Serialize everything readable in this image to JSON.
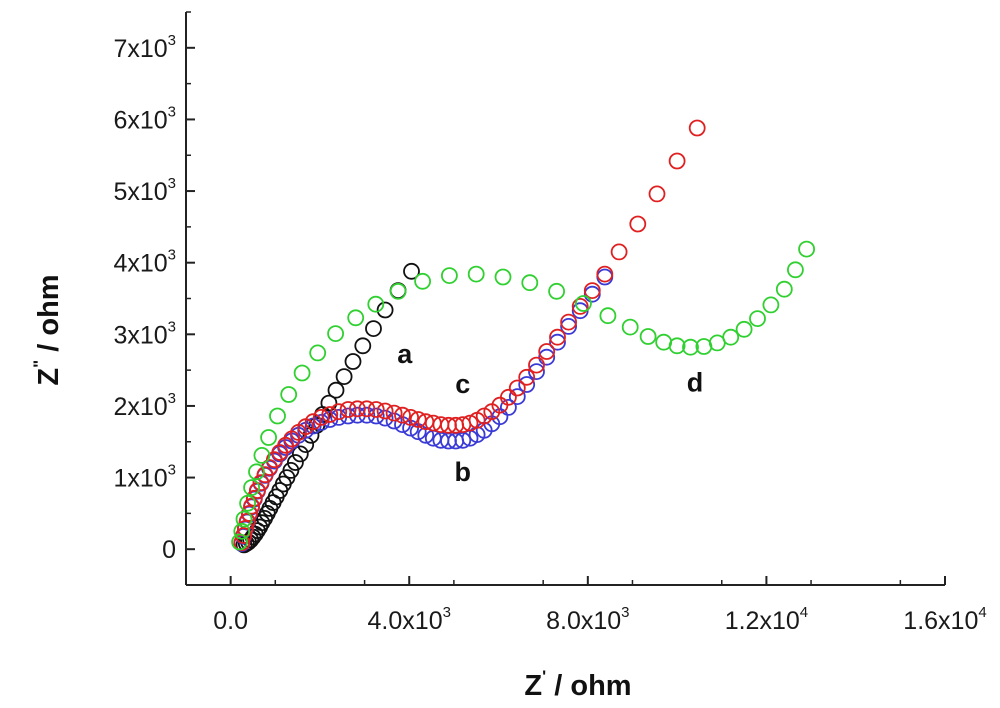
{
  "chart_data": {
    "type": "scatter",
    "title": "",
    "xlabel": "Z",
    "xlabel_sup": "'",
    "xlabel_unit": " / ohm",
    "ylabel": "Z",
    "ylabel_sup": "\"",
    "ylabel_unit": " / ohm",
    "xlim": [
      -1000,
      16000
    ],
    "ylim": [
      -500,
      7500
    ],
    "x_ticks": [
      {
        "value": 0,
        "label": "0.0",
        "sup": ""
      },
      {
        "value": 4000,
        "label": "4.0x10",
        "sup": "3"
      },
      {
        "value": 8000,
        "label": "8.0x10",
        "sup": "3"
      },
      {
        "value": 12000,
        "label": "1.2x10",
        "sup": "4"
      },
      {
        "value": 16000,
        "label": "1.6x10",
        "sup": "4"
      }
    ],
    "y_ticks": [
      {
        "value": 0,
        "label": "0",
        "sup": ""
      },
      {
        "value": 1000,
        "label": "1x10",
        "sup": "3"
      },
      {
        "value": 2000,
        "label": "2x10",
        "sup": "3"
      },
      {
        "value": 3000,
        "label": "3x10",
        "sup": "3"
      },
      {
        "value": 4000,
        "label": "4x10",
        "sup": "3"
      },
      {
        "value": 5000,
        "label": "5x10",
        "sup": "3"
      },
      {
        "value": 6000,
        "label": "6x10",
        "sup": "3"
      },
      {
        "value": 7000,
        "label": "7x10",
        "sup": "3"
      }
    ],
    "grid": false,
    "legend": "none",
    "series": [
      {
        "name": "a",
        "color": "#111111",
        "label_at": [
          3900,
          2600
        ],
        "points": [
          [
            300,
            60
          ],
          [
            350,
            80
          ],
          [
            400,
            100
          ],
          [
            450,
            130
          ],
          [
            500,
            170
          ],
          [
            550,
            210
          ],
          [
            600,
            260
          ],
          [
            650,
            310
          ],
          [
            700,
            370
          ],
          [
            760,
            430
          ],
          [
            820,
            500
          ],
          [
            880,
            570
          ],
          [
            950,
            650
          ],
          [
            1020,
            730
          ],
          [
            1100,
            820
          ],
          [
            1180,
            910
          ],
          [
            1260,
            1000
          ],
          [
            1350,
            1100
          ],
          [
            1450,
            1210
          ],
          [
            1560,
            1330
          ],
          [
            1680,
            1460
          ],
          [
            1800,
            1590
          ],
          [
            1930,
            1730
          ],
          [
            2060,
            1880
          ],
          [
            2200,
            2040
          ],
          [
            2360,
            2220
          ],
          [
            2540,
            2410
          ],
          [
            2740,
            2620
          ],
          [
            2960,
            2840
          ],
          [
            3200,
            3080
          ],
          [
            3460,
            3340
          ],
          [
            3750,
            3610
          ],
          [
            4050,
            3880
          ]
        ]
      },
      {
        "name": "b",
        "color": "#3a3ad6",
        "label_at": [
          5200,
          950
        ],
        "points": [
          [
            250,
            80
          ],
          [
            290,
            180
          ],
          [
            330,
            280
          ],
          [
            370,
            380
          ],
          [
            420,
            490
          ],
          [
            470,
            590
          ],
          [
            530,
            700
          ],
          [
            600,
            810
          ],
          [
            680,
            920
          ],
          [
            770,
            1030
          ],
          [
            870,
            1130
          ],
          [
            980,
            1230
          ],
          [
            1100,
            1330
          ],
          [
            1230,
            1420
          ],
          [
            1370,
            1510
          ],
          [
            1520,
            1590
          ],
          [
            1680,
            1660
          ],
          [
            1850,
            1720
          ],
          [
            2030,
            1770
          ],
          [
            2220,
            1810
          ],
          [
            2420,
            1840
          ],
          [
            2630,
            1860
          ],
          [
            2840,
            1870
          ],
          [
            3050,
            1870
          ],
          [
            3260,
            1860
          ],
          [
            3460,
            1830
          ],
          [
            3660,
            1790
          ],
          [
            3850,
            1740
          ],
          [
            4030,
            1690
          ],
          [
            4200,
            1640
          ],
          [
            4370,
            1590
          ],
          [
            4540,
            1550
          ],
          [
            4710,
            1520
          ],
          [
            4880,
            1510
          ],
          [
            5040,
            1510
          ],
          [
            5200,
            1520
          ],
          [
            5360,
            1550
          ],
          [
            5520,
            1600
          ],
          [
            5680,
            1660
          ],
          [
            5850,
            1750
          ],
          [
            6030,
            1850
          ],
          [
            6220,
            1980
          ],
          [
            6420,
            2130
          ],
          [
            6630,
            2300
          ],
          [
            6850,
            2480
          ],
          [
            7080,
            2680
          ],
          [
            7320,
            2890
          ],
          [
            7570,
            3110
          ],
          [
            7830,
            3330
          ],
          [
            8100,
            3560
          ],
          [
            8380,
            3800
          ]
        ]
      },
      {
        "name": "c",
        "color": "#e02020",
        "label_at": [
          5200,
          2180
        ],
        "points": [
          [
            250,
            90
          ],
          [
            290,
            190
          ],
          [
            330,
            290
          ],
          [
            370,
            390
          ],
          [
            420,
            500
          ],
          [
            470,
            600
          ],
          [
            530,
            710
          ],
          [
            600,
            820
          ],
          [
            680,
            930
          ],
          [
            770,
            1040
          ],
          [
            870,
            1140
          ],
          [
            980,
            1250
          ],
          [
            1100,
            1350
          ],
          [
            1230,
            1450
          ],
          [
            1370,
            1540
          ],
          [
            1520,
            1630
          ],
          [
            1680,
            1710
          ],
          [
            1850,
            1780
          ],
          [
            2030,
            1840
          ],
          [
            2220,
            1880
          ],
          [
            2420,
            1920
          ],
          [
            2630,
            1950
          ],
          [
            2840,
            1960
          ],
          [
            3050,
            1960
          ],
          [
            3260,
            1950
          ],
          [
            3460,
            1930
          ],
          [
            3660,
            1900
          ],
          [
            3850,
            1870
          ],
          [
            4030,
            1840
          ],
          [
            4200,
            1810
          ],
          [
            4370,
            1780
          ],
          [
            4540,
            1760
          ],
          [
            4710,
            1740
          ],
          [
            4880,
            1730
          ],
          [
            5040,
            1730
          ],
          [
            5200,
            1740
          ],
          [
            5360,
            1760
          ],
          [
            5520,
            1800
          ],
          [
            5680,
            1860
          ],
          [
            5850,
            1920
          ],
          [
            6030,
            2010
          ],
          [
            6220,
            2120
          ],
          [
            6420,
            2250
          ],
          [
            6630,
            2400
          ],
          [
            6850,
            2570
          ],
          [
            7080,
            2760
          ],
          [
            7320,
            2960
          ],
          [
            7570,
            3170
          ],
          [
            7830,
            3390
          ],
          [
            8100,
            3610
          ],
          [
            8380,
            3840
          ],
          [
            8700,
            4150
          ],
          [
            9120,
            4540
          ],
          [
            9550,
            4960
          ],
          [
            10000,
            5420
          ],
          [
            10450,
            5880
          ]
        ]
      },
      {
        "name": "d",
        "color": "#30d030",
        "label_at": [
          10400,
          2200
        ],
        "points": [
          [
            200,
            100
          ],
          [
            250,
            250
          ],
          [
            300,
            420
          ],
          [
            380,
            640
          ],
          [
            470,
            860
          ],
          [
            580,
            1080
          ],
          [
            700,
            1310
          ],
          [
            850,
            1560
          ],
          [
            1050,
            1860
          ],
          [
            1300,
            2160
          ],
          [
            1600,
            2460
          ],
          [
            1950,
            2740
          ],
          [
            2350,
            3010
          ],
          [
            2800,
            3230
          ],
          [
            3250,
            3420
          ],
          [
            3750,
            3600
          ],
          [
            4300,
            3740
          ],
          [
            4900,
            3820
          ],
          [
            5500,
            3840
          ],
          [
            6100,
            3800
          ],
          [
            6700,
            3720
          ],
          [
            7300,
            3600
          ],
          [
            7900,
            3430
          ],
          [
            8450,
            3260
          ],
          [
            8950,
            3100
          ],
          [
            9350,
            2970
          ],
          [
            9700,
            2890
          ],
          [
            10000,
            2840
          ],
          [
            10300,
            2820
          ],
          [
            10600,
            2830
          ],
          [
            10900,
            2880
          ],
          [
            11200,
            2960
          ],
          [
            11500,
            3070
          ],
          [
            11800,
            3220
          ],
          [
            12100,
            3410
          ],
          [
            12400,
            3630
          ],
          [
            12650,
            3900
          ],
          [
            12900,
            4190
          ]
        ]
      }
    ]
  }
}
